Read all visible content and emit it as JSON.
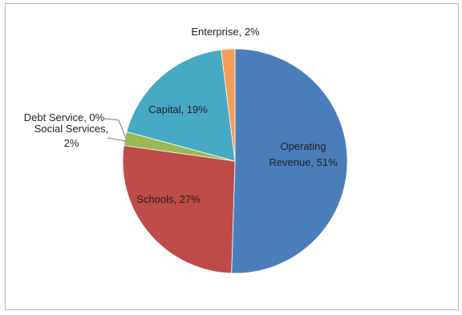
{
  "chart_data": {
    "type": "pie",
    "slices": [
      {
        "label": "Operating Revenue",
        "value": 51,
        "display": [
          "Operating",
          "Revenue, 51%"
        ],
        "color": "#4a7ebb"
      },
      {
        "label": "Schools",
        "value": 27,
        "display": [
          "Schools, 27%"
        ],
        "color": "#be4b48"
      },
      {
        "label": "Social Services",
        "value": 2,
        "display": [
          "Social Services,",
          "2%"
        ],
        "color": "#98b954"
      },
      {
        "label": "Debt Service",
        "value": 0,
        "display": [
          "Debt Service, 0%"
        ],
        "color": "#7d60a0"
      },
      {
        "label": "Capital",
        "value": 19,
        "display": [
          "Capital, 19%"
        ],
        "color": "#46aac5"
      },
      {
        "label": "Enterprise",
        "value": 2,
        "display": [
          "Enterprise, 2%"
        ],
        "color": "#f59d56"
      }
    ],
    "start": "12 o'clock",
    "direction": "clockwise",
    "legend": "none"
  }
}
